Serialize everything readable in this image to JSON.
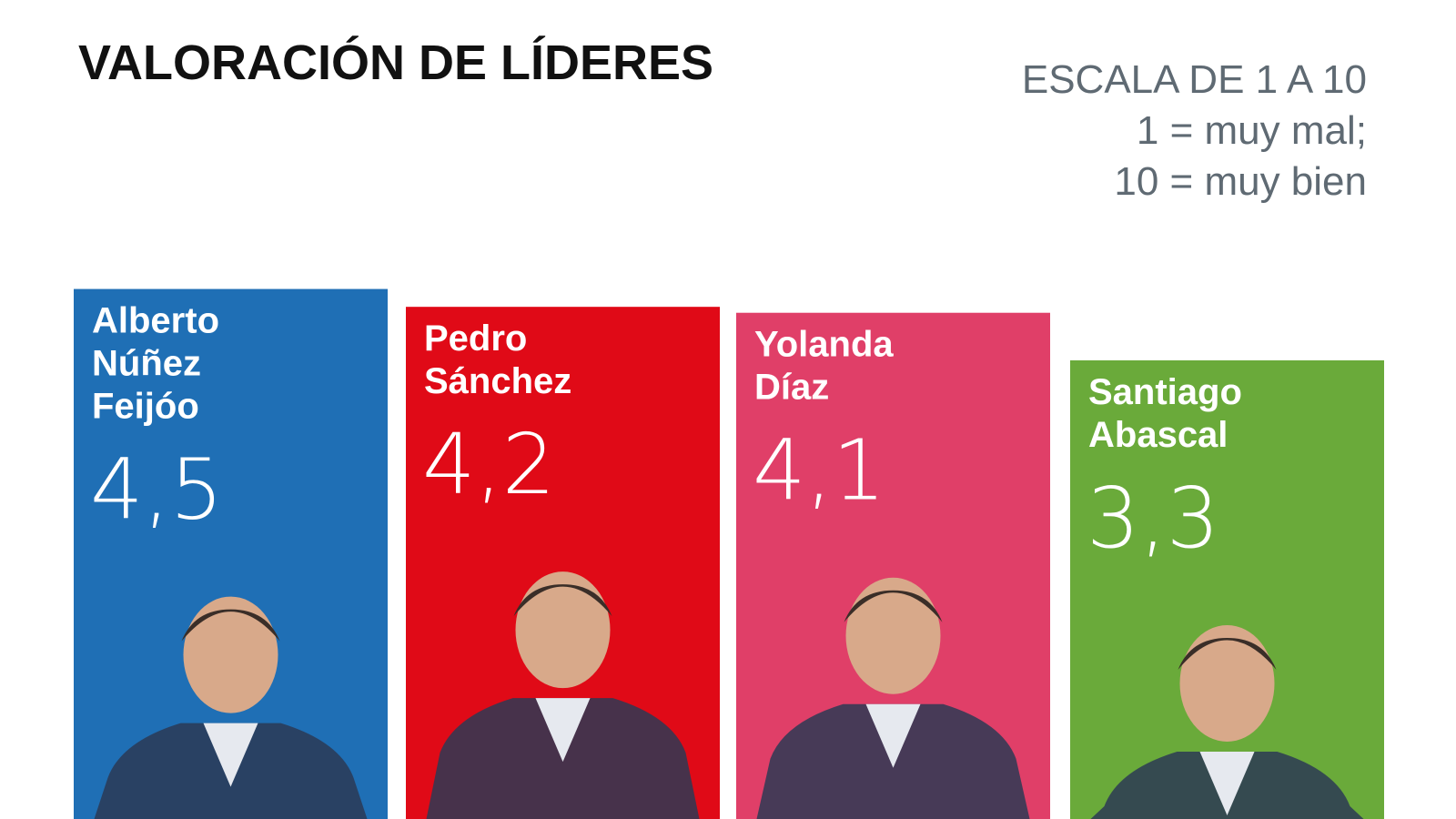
{
  "chart_data": {
    "type": "bar",
    "title": "VALORACIÓN DE LÍDERES",
    "scale_lines": [
      "ESCALA DE 1 A 10",
      "1 = muy mal;",
      "10 = muy bien"
    ],
    "ylim": [
      1,
      10
    ],
    "grid": false,
    "categories": [
      {
        "name_lines": [
          "Alberto",
          "Núñez",
          "Feijóo"
        ],
        "value_label": "4,5"
      },
      {
        "name_lines": [
          "Pedro",
          "Sánchez"
        ],
        "value_label": "4,2"
      },
      {
        "name_lines": [
          "Yolanda",
          "Díaz"
        ],
        "value_label": "4,1"
      },
      {
        "name_lines": [
          "Santiago",
          "Abascal"
        ],
        "value_label": "3,3"
      }
    ],
    "values": [
      4.5,
      4.2,
      4.1,
      3.3
    ],
    "colors": [
      "#1f6fb5",
      "#e00a17",
      "#e03f68",
      "#6aaa3a"
    ]
  }
}
